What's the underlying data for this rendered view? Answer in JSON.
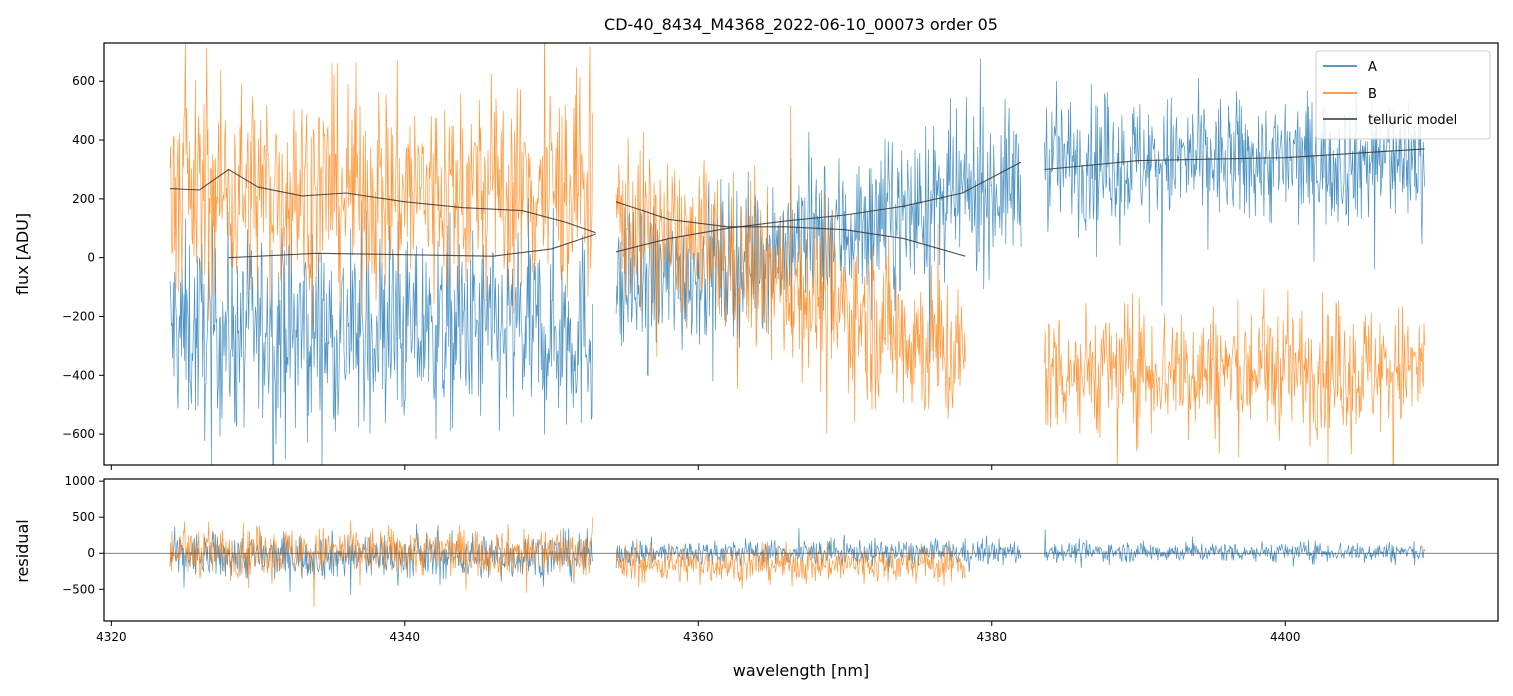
{
  "chart_data": [
    {
      "type": "line",
      "panel": "top",
      "title": "CD-40_8434_M4368_2022-06-10_00073  order 05",
      "xlabel": "",
      "ylabel": "flux [ADU]",
      "xlim": [
        4319.5,
        4414.5
      ],
      "ylim": [
        -705,
        730
      ],
      "yticks": [
        -600,
        -400,
        -200,
        0,
        200,
        400,
        600
      ],
      "grid": false,
      "legend_position": "top-right",
      "series": [
        {
          "name": "A",
          "color": "#1f77b4",
          "segments": [
            {
              "x_range": [
                4324.0,
                4352.8
              ],
              "mean": -250,
              "noise_std": 170
            },
            {
              "x_range": [
                4354.4,
                4382.0
              ],
              "mean_start": -120,
              "mean_end": 260,
              "noise_std": 130
            },
            {
              "x_range": [
                4383.6,
                4409.5
              ],
              "mean": 330,
              "noise_std": 110
            }
          ]
        },
        {
          "name": "B",
          "color": "#ff7f0e",
          "segments": [
            {
              "x_range": [
                4324.0,
                4352.8
              ],
              "mean": 230,
              "noise_std": 180
            },
            {
              "x_range": [
                4354.4,
                4378.2
              ],
              "mean_start": 150,
              "mean_end": -350,
              "noise_std": 140
            },
            {
              "x_range": [
                4383.6,
                4409.5
              ],
              "mean": -380,
              "noise_std": 110
            }
          ]
        },
        {
          "name": "telluric model",
          "color": "#333333",
          "curves": [
            {
              "x": [
                4324.0,
                4326.0,
                4328.0,
                4330.0,
                4333.0,
                4336.0,
                4340.0,
                4344.0,
                4348.0,
                4351.0,
                4353.0
              ],
              "y": [
                235,
                230,
                300,
                240,
                210,
                220,
                190,
                170,
                160,
                120,
                85
              ]
            },
            {
              "x": [
                4328.0,
                4334.0,
                4340.0,
                4346.0,
                4350.0,
                4353.0
              ],
              "y": [
                0,
                15,
                10,
                5,
                30,
                80
              ]
            },
            {
              "x": [
                4354.4,
                4358.0,
                4362.0,
                4366.0,
                4370.0,
                4374.0,
                4378.2
              ],
              "y": [
                190,
                130,
                105,
                105,
                95,
                65,
                5
              ]
            },
            {
              "x": [
                4354.4,
                4358.0,
                4362.0,
                4366.0,
                4370.0,
                4374.0,
                4378.0,
                4382.0
              ],
              "y": [
                20,
                65,
                100,
                125,
                145,
                175,
                220,
                325
              ]
            },
            {
              "x": [
                4383.6,
                4390.0,
                4400.0,
                4409.5
              ],
              "y": [
                300,
                330,
                340,
                370
              ]
            }
          ]
        }
      ]
    },
    {
      "type": "line",
      "panel": "bottom",
      "xlabel": "wavelength [nm]",
      "ylabel": "residual",
      "xlim": [
        4319.5,
        4414.5
      ],
      "ylim": [
        -940,
        1030
      ],
      "xticks": [
        4320,
        4340,
        4360,
        4380,
        4400
      ],
      "yticks": [
        -500,
        0,
        500,
        1000
      ],
      "hline": 0,
      "series": [
        {
          "name": "A",
          "color": "#1f77b4",
          "segments": [
            {
              "x_range": [
                4324.0,
                4352.8
              ],
              "mean": -40,
              "noise_std": 160
            },
            {
              "x_range": [
                4354.4,
                4382.0
              ],
              "mean": 10,
              "noise_std": 90
            },
            {
              "x_range": [
                4383.6,
                4409.5
              ],
              "mean": 20,
              "noise_std": 70
            }
          ]
        },
        {
          "name": "B",
          "color": "#ff7f0e",
          "segments": [
            {
              "x_range": [
                4324.0,
                4352.8
              ],
              "mean": 20,
              "noise_std": 170
            },
            {
              "x_range": [
                4354.4,
                4378.2
              ],
              "mean": -150,
              "noise_std": 130
            }
          ]
        }
      ]
    }
  ]
}
